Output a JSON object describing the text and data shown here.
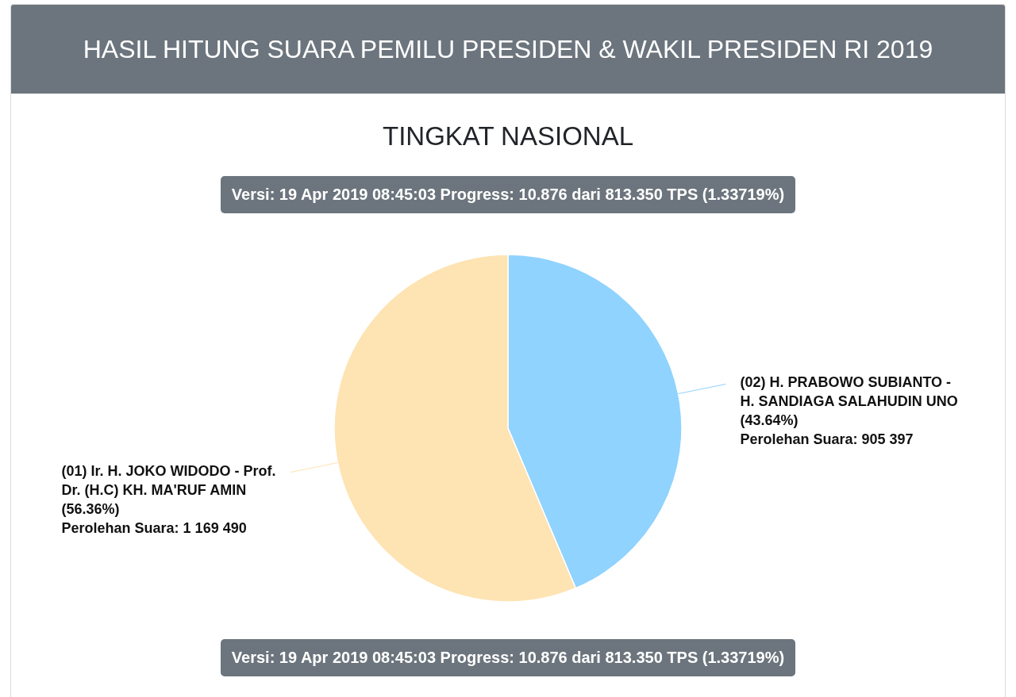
{
  "chart_data": {
    "type": "pie",
    "title": "HASIL HITUNG SUARA PEMILU PRESIDEN & WAKIL PRESIDEN RI 2019",
    "subtitle": "TINGKAT NASIONAL",
    "annotations": [
      "Versi: 19 Apr 2019 08:45:03 Progress: 10.876 dari 813.350 TPS (1.33719%)",
      "Versi: 19 Apr 2019 08:45:03 Progress: 10.876 dari 813.350 TPS (1.33719%)"
    ],
    "categories": [
      "(02) H. PRABOWO SUBIANTO - H. SANDIAGA SALAHUDIN UNO",
      "(01) Ir. H. JOKO WIDODO - Prof. Dr. (H.C) KH. MA'RUF AMIN"
    ],
    "values": [
      905397,
      1169490
    ],
    "colors": [
      "#8fd3fe",
      "#fee3b3"
    ],
    "value_labels": [
      "(43.64%)\nPerolehan Suara: 905 397",
      "(56.36%)\nPerolehan Suara: 1 169 490"
    ]
  }
}
